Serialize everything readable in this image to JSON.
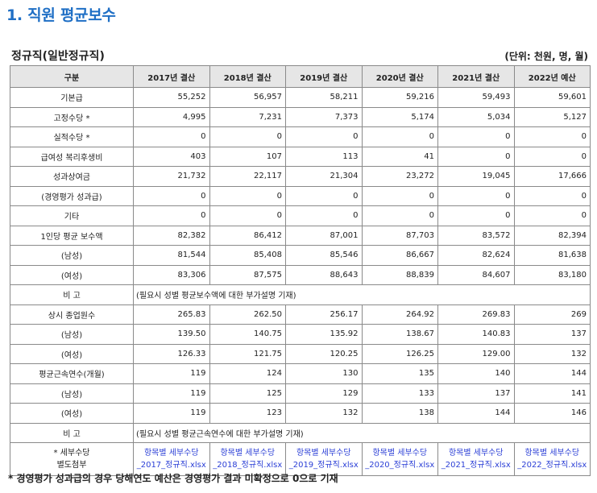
{
  "page_title": "1. 직원 평균보수",
  "section_title": "정규직(일반정규직)",
  "unit_note": "(단위: 천원, 명, 월)",
  "table": {
    "headers": [
      "구분",
      "2017년 결산",
      "2018년 결산",
      "2019년 결산",
      "2020년 결산",
      "2021년 결산",
      "2022년 예산"
    ],
    "rows": [
      {
        "label": "기본급",
        "values": [
          "55,252",
          "56,957",
          "58,211",
          "59,216",
          "59,493",
          "59,601"
        ]
      },
      {
        "label": "고정수당 *",
        "values": [
          "4,995",
          "7,231",
          "7,373",
          "5,174",
          "5,034",
          "5,127"
        ]
      },
      {
        "label": "실적수당 *",
        "values": [
          "0",
          "0",
          "0",
          "0",
          "0",
          "0"
        ]
      },
      {
        "label": "급여성 복리후생비",
        "values": [
          "403",
          "107",
          "113",
          "41",
          "0",
          "0"
        ]
      },
      {
        "label": "성과상여금",
        "values": [
          "21,732",
          "22,117",
          "21,304",
          "23,272",
          "19,045",
          "17,666"
        ]
      },
      {
        "label": "(경영평가 성과급)",
        "values": [
          "0",
          "0",
          "0",
          "0",
          "0",
          "0"
        ]
      },
      {
        "label": "기타",
        "values": [
          "0",
          "0",
          "0",
          "0",
          "0",
          "0"
        ]
      },
      {
        "label": "1인당 평균 보수액",
        "values": [
          "82,382",
          "86,412",
          "87,001",
          "87,703",
          "83,572",
          "82,394"
        ]
      },
      {
        "label": "(남성)",
        "values": [
          "81,544",
          "85,408",
          "85,546",
          "86,667",
          "82,624",
          "81,638"
        ]
      },
      {
        "label": "(여성)",
        "values": [
          "83,306",
          "87,575",
          "88,643",
          "88,839",
          "84,607",
          "83,180"
        ]
      },
      {
        "label": "상시 종업원수",
        "values": [
          "265.83",
          "262.50",
          "256.17",
          "264.92",
          "269.83",
          "269"
        ]
      },
      {
        "label": "(남성)",
        "values": [
          "139.50",
          "140.75",
          "135.92",
          "138.67",
          "140.83",
          "137"
        ]
      },
      {
        "label": "(여성)",
        "values": [
          "126.33",
          "121.75",
          "120.25",
          "126.25",
          "129.00",
          "132"
        ]
      },
      {
        "label": "평균근속연수(개월)",
        "values": [
          "119",
          "124",
          "130",
          "135",
          "140",
          "144"
        ]
      },
      {
        "label": "(남성)",
        "values": [
          "119",
          "125",
          "129",
          "133",
          "137",
          "141"
        ]
      },
      {
        "label": "(여성)",
        "values": [
          "119",
          "123",
          "132",
          "138",
          "144",
          "146"
        ]
      }
    ],
    "note1_label": "비 고",
    "note1_text": "(필요시 성별 평균보수액에 대한 부가설명 기재)",
    "note2_label": "비 고",
    "note2_text": "(필요시 성별 평균근속연수에 대한 부가설명 기재)",
    "attachment": {
      "label_line1": "* 세부수당",
      "label_line2": "별도첨부",
      "links": [
        {
          "line1": "항목별 세부수당",
          "line2": "_2017_정규직.xlsx"
        },
        {
          "line1": "항목별 세부수당",
          "line2": "_2018_정규직.xlsx"
        },
        {
          "line1": "항목별 세부수당",
          "line2": "_2019_정규직.xlsx"
        },
        {
          "line1": "항목별 세부수당",
          "line2": "_2020_정규직.xlsx"
        },
        {
          "line1": "항목별 세부수당",
          "line2": "_2021_정규직.xlsx"
        },
        {
          "line1": "항목별 세부수당",
          "line2": "_2022_정규직.xlsx"
        }
      ]
    }
  },
  "footnote": "* 경영평가 성과급의 경우 당해연도 예산은 경영평가 결과 미확정으로 0으로 기재",
  "colors": {
    "title": "#1f6fc5",
    "link": "#2b3fd6",
    "header_bg": "#e6e6e6",
    "border": "#8a8a8a"
  }
}
